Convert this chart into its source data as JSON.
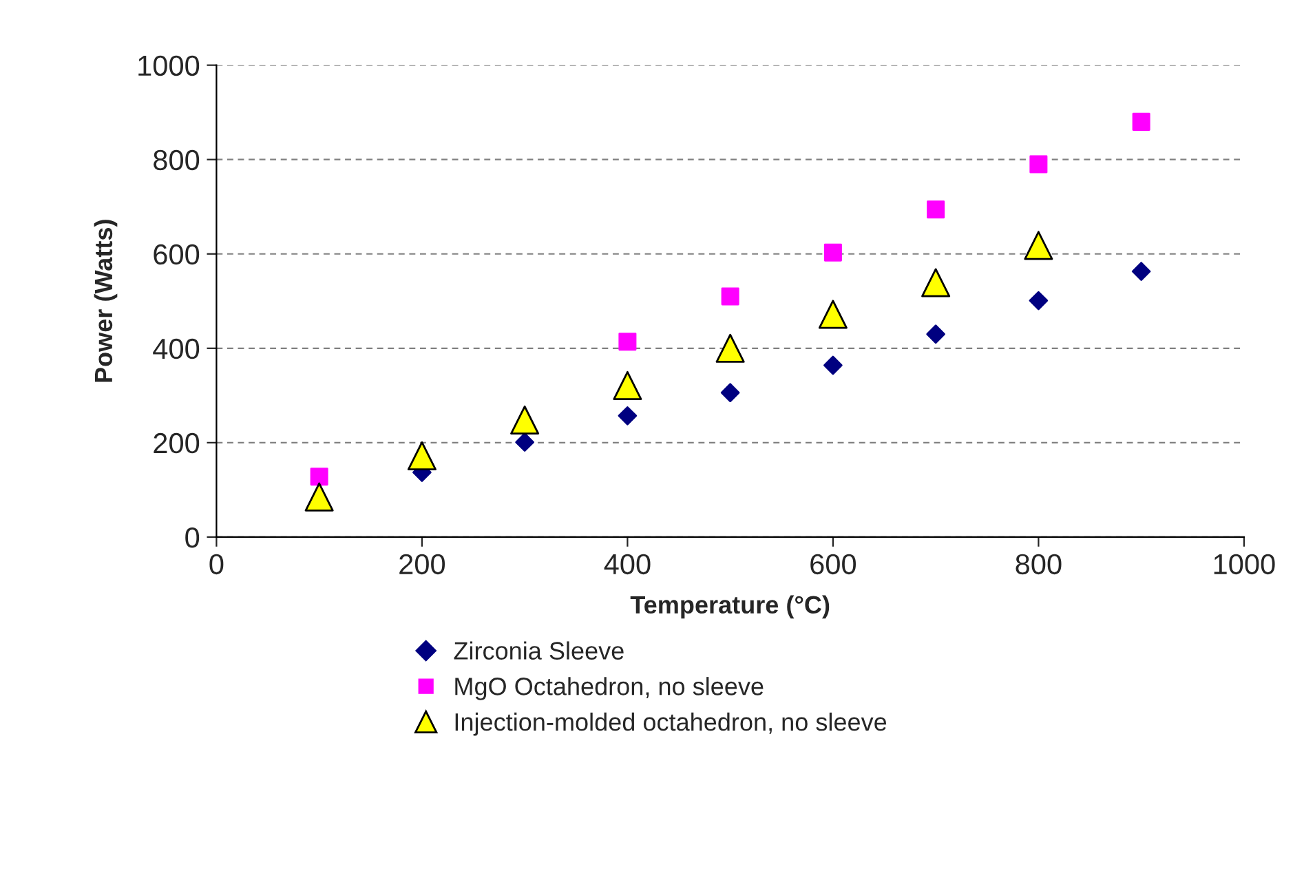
{
  "chart_data": {
    "type": "scatter",
    "xlabel": "Temperature (°C)",
    "ylabel": "Power (Watts)",
    "x": [
      100,
      200,
      300,
      400,
      500,
      600,
      700,
      800,
      900
    ],
    "series": [
      {
        "name": "Zirconia Sleeve",
        "color": "#000080",
        "marker": "diamond",
        "values": [
          null,
          137,
          201,
          257,
          306,
          364,
          430,
          501,
          563
        ]
      },
      {
        "name": "MgO Octahedron, no sleeve",
        "color": "#ff00ff",
        "marker": "square",
        "values": [
          128,
          null,
          null,
          414,
          510,
          603,
          694,
          790,
          880
        ]
      },
      {
        "name": "Injection-molded octahedron, no sleeve",
        "color": "#ffff00",
        "marker": "triangle",
        "values": [
          85,
          172,
          248,
          321,
          400,
          472,
          539,
          618,
          null
        ]
      }
    ],
    "xlim": [
      0,
      1000
    ],
    "xticks": [
      0,
      200,
      400,
      600,
      800,
      1000
    ],
    "ylim": [
      0,
      1000
    ],
    "yticks": [
      0,
      200,
      400,
      600,
      800,
      1000
    ],
    "grid": "y",
    "legend": "bottom"
  }
}
